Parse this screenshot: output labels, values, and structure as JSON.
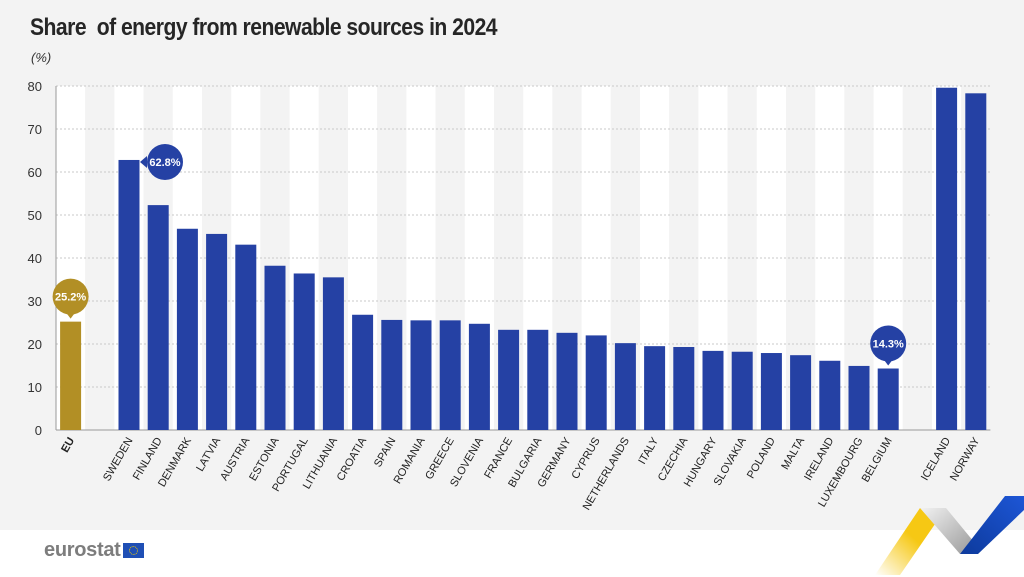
{
  "header": {
    "title": "Share  of energy from renewable sources in 2024",
    "unit": "(%)"
  },
  "footer": {
    "logo_text": "eurostat",
    "logo_icon": "eu-flag-icon"
  },
  "colors": {
    "eu_bar": "#b28f25",
    "country_bar": "#2541a4",
    "grid": "#c8c8c8",
    "band_light": "#ffffff",
    "band_dark": "#f3f3f3"
  },
  "chart_data": {
    "type": "bar",
    "title": "Share  of energy from renewable sources in 2024",
    "xlabel": "",
    "ylabel": "(%)",
    "ylim": [
      0,
      80
    ],
    "yticks": [
      0,
      10,
      20,
      30,
      40,
      50,
      60,
      70,
      80
    ],
    "grid": true,
    "categories": [
      "EU",
      "SWEDEN",
      "FINLAND",
      "DENMARK",
      "LATVIA",
      "AUSTRIA",
      "ESTONIA",
      "PORTUGAL",
      "LITHUANIA",
      "CROATIA",
      "SPAIN",
      "ROMANIA",
      "GREECE",
      "SLOVENIA",
      "FRANCE",
      "BULGARIA",
      "GERMANY",
      "CYPRUS",
      "NETHERLANDS",
      "ITALY",
      "CZECHIA",
      "HUNGARY",
      "SLOVAKIA",
      "POLAND",
      "MALTA",
      "IRELAND",
      "LUXEMBOURG",
      "BELGIUM",
      "ICELAND",
      "NORWAY"
    ],
    "values": [
      25.2,
      62.8,
      52.3,
      46.8,
      45.6,
      43.1,
      38.2,
      36.4,
      35.5,
      26.8,
      25.6,
      25.5,
      25.5,
      24.7,
      23.3,
      23.3,
      22.6,
      22.0,
      20.2,
      19.5,
      19.3,
      18.4,
      18.2,
      17.9,
      17.4,
      16.1,
      14.9,
      14.3,
      79.6,
      78.3
    ],
    "groups": [
      "eu",
      "member",
      "member",
      "member",
      "member",
      "member",
      "member",
      "member",
      "member",
      "member",
      "member",
      "member",
      "member",
      "member",
      "member",
      "member",
      "member",
      "member",
      "member",
      "member",
      "member",
      "member",
      "member",
      "member",
      "member",
      "member",
      "member",
      "member",
      "efta",
      "efta"
    ],
    "annotations": [
      {
        "category": "EU",
        "label": "25.2%",
        "style": "gold-bubble-above"
      },
      {
        "category": "SWEDEN",
        "label": "62.8%",
        "style": "blue-bubble-right"
      },
      {
        "category": "BELGIUM",
        "label": "14.3%",
        "style": "blue-bubble-above"
      }
    ]
  }
}
